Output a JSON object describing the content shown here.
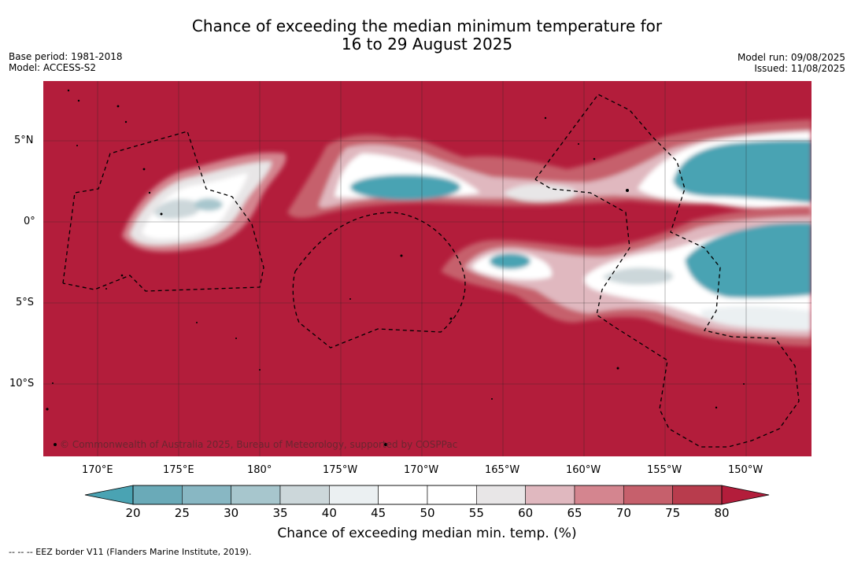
{
  "title_line1": "Chance of exceeding the median minimum temperature for",
  "title_line2": "16 to 29 August 2025",
  "base_period": "Base period: 1981-2018",
  "model": "Model: ACCESS-S2",
  "model_run": "Model run: 09/08/2025",
  "issued": "Issued: 11/08/2025",
  "lat_labels": [
    "5°N",
    "0°",
    "5°S",
    "10°S"
  ],
  "lon_labels": [
    "170°E",
    "175°E",
    "180°",
    "175°W",
    "170°W",
    "165°W",
    "160°W",
    "155°W",
    "150°W"
  ],
  "copyright": "© Commonwealth of Australia 2025, Bureau of Meteorology, supported by COSPPac",
  "colorbar": {
    "ticks": [
      "20",
      "25",
      "30",
      "35",
      "40",
      "45",
      "50",
      "55",
      "60",
      "65",
      "70",
      "75",
      "80"
    ],
    "colors": [
      "#6aaab8",
      "#88b7c3",
      "#a7c6cd",
      "#ccd7da",
      "#ebf0f2",
      "#ffffff",
      "#ffffff",
      "#e8e6e7",
      "#e0b8bf",
      "#d4858f",
      "#c6606c",
      "#b83c4d"
    ],
    "under_color": "#4aa3b3",
    "over_color": "#b31d3b",
    "label": "Chance of exceeding median min. temp. (%)"
  },
  "footnote": "--  --  -- EEZ border V11 (Flanders Marine Institute, 2019).",
  "colors": {
    "background_field": "#b31d3b",
    "teal": "#4aa3b3"
  }
}
